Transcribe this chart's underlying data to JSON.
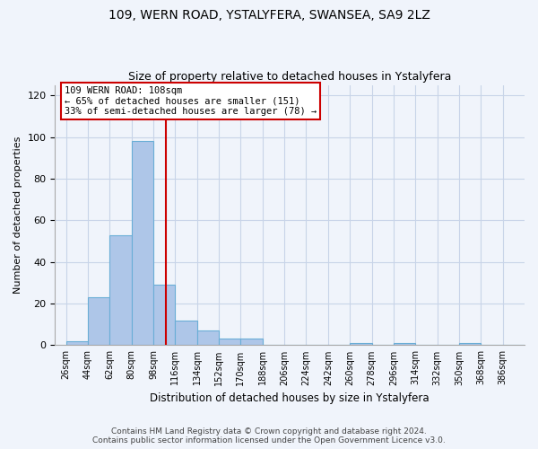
{
  "title_line1": "109, WERN ROAD, YSTALYFERA, SWANSEA, SA9 2LZ",
  "title_line2": "Size of property relative to detached houses in Ystalyfera",
  "xlabel": "Distribution of detached houses by size in Ystalyfera",
  "ylabel": "Number of detached properties",
  "footer_line1": "Contains HM Land Registry data © Crown copyright and database right 2024.",
  "footer_line2": "Contains public sector information licensed under the Open Government Licence v3.0.",
  "annotation_line1": "109 WERN ROAD: 108sqm",
  "annotation_line2": "← 65% of detached houses are smaller (151)",
  "annotation_line3": "33% of semi-detached houses are larger (78) →",
  "property_size": 108,
  "bin_edges": [
    26,
    44,
    62,
    80,
    98,
    116,
    134,
    152,
    170,
    188,
    206,
    224,
    242,
    260,
    278,
    296,
    314,
    332,
    350,
    368,
    386,
    404
  ],
  "bar_heights": [
    2,
    23,
    53,
    98,
    29,
    12,
    7,
    3,
    3,
    0,
    0,
    0,
    0,
    1,
    0,
    1,
    0,
    0,
    1,
    0,
    0
  ],
  "bar_color": "#aec6e8",
  "bar_edgecolor": "#6aaed6",
  "redline_x": 108,
  "ylim": [
    0,
    125
  ],
  "yticks": [
    0,
    20,
    40,
    60,
    80,
    100,
    120
  ],
  "xlim_left": 17,
  "xlim_right": 404,
  "background_color": "#f0f4fb",
  "grid_color": "#c8d4e8",
  "annotation_box_color": "#ffffff",
  "annotation_box_edgecolor": "#cc0000",
  "redline_color": "#cc0000",
  "title1_fontsize": 10,
  "title2_fontsize": 9,
  "tick_label_fontsize": 7,
  "ylabel_fontsize": 8,
  "xlabel_fontsize": 8.5,
  "footer_fontsize": 6.5,
  "annotation_fontsize": 7.5
}
